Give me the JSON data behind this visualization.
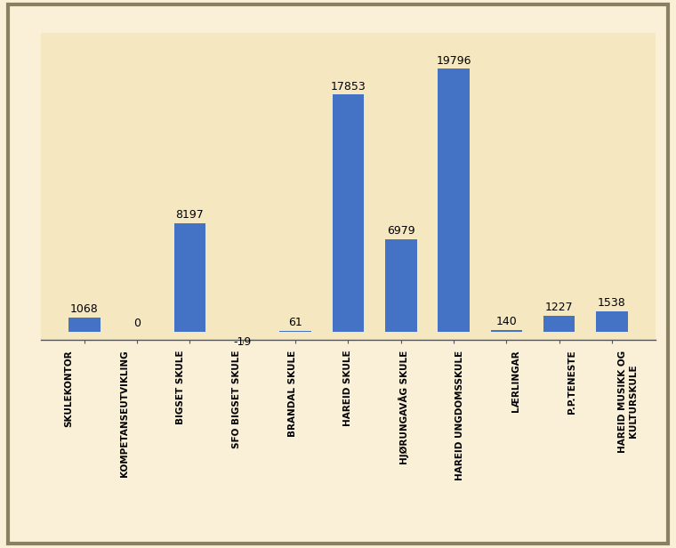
{
  "categories": [
    "SKULEKONTOR",
    "KOMPETANSEUTVIKLING",
    "BIGSET SKULE",
    "SFO BIGSET SKULE",
    "BRANDAL SKULE",
    "HAREID SKULE",
    "HJØRUNGAVÅG SKULE",
    "HAREID UNGDOMSSKULE",
    "LÆRLINGAR",
    "P.P.TENESTE",
    "HAREID MUSIKK OG\nKULTURSKULE"
  ],
  "values": [
    1068,
    0,
    8197,
    -19,
    61,
    17853,
    6979,
    19796,
    140,
    1227,
    1538
  ],
  "bar_color": "#4472C4",
  "fig_bg_color": "#FAF0D7",
  "chart_bg_color": "#F5E8C0",
  "label_bg_color": "#E8D8A8",
  "border_color": "#888060",
  "label_fontsize": 7.5,
  "value_fontsize": 9,
  "ylim": [
    -600,
    22500
  ],
  "figsize": [
    7.6,
    6.16
  ],
  "dpi": 100
}
